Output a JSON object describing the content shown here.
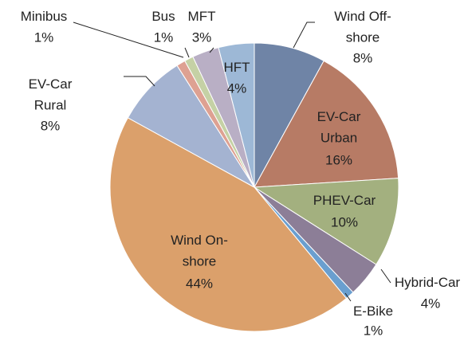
{
  "chart_data": {
    "type": "pie",
    "categories": [
      "Wind Off-shore",
      "EV-Car Urban",
      "PHEV-Car",
      "Hybrid-Car",
      "E-Bike",
      "Wind On-shore",
      "EV-Car Rural",
      "Minibus",
      "Bus",
      "MFT",
      "HFT"
    ],
    "values": [
      8,
      16,
      10,
      4,
      1,
      44,
      8,
      1,
      1,
      3,
      4
    ],
    "value_labels": [
      "8%",
      "16%",
      "10%",
      "4%",
      "1%",
      "44%",
      "8%",
      "1%",
      "1%",
      "3%",
      "4%"
    ],
    "colors": [
      "#6f84a6",
      "#b77b65",
      "#a3b07f",
      "#8c7e97",
      "#6a9fcf",
      "#dba06b",
      "#a4b3d1",
      "#dea192",
      "#c5d1a5",
      "#b9afc5",
      "#9db8d6"
    ]
  }
}
